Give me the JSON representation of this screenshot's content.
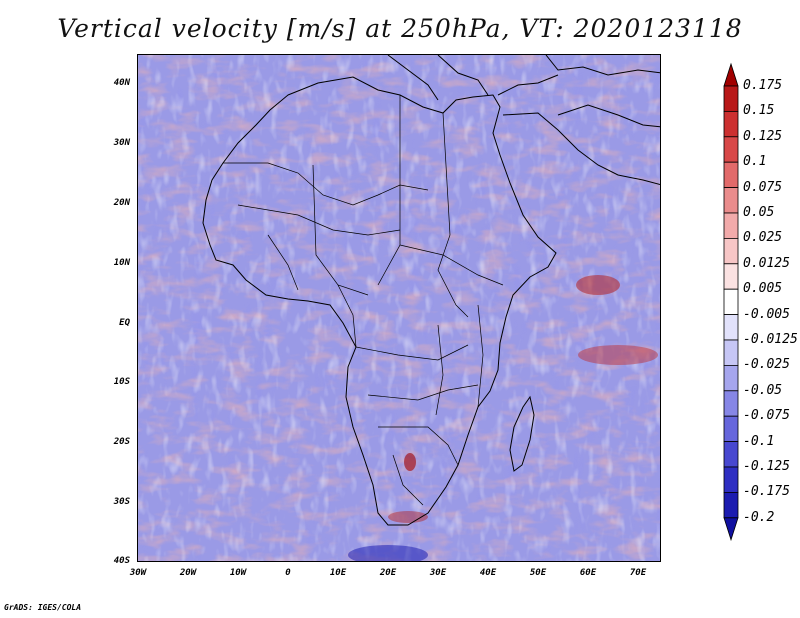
{
  "title": "Vertical velocity [m/s] at 250hPa, VT: 2020123118",
  "credit": "GrADS: IGES/COLA",
  "map": {
    "lat_labels": [
      "40N",
      "30N",
      "20N",
      "10N",
      "EQ",
      "10S",
      "20S",
      "30S",
      "40S"
    ],
    "lon_labels": [
      "30W",
      "20W",
      "10W",
      "0",
      "10E",
      "20E",
      "30E",
      "40E",
      "50E",
      "60E",
      "70E"
    ],
    "lat_range": [
      -40,
      44
    ],
    "lon_range": [
      -30,
      76
    ]
  },
  "colorbar": {
    "labels": [
      "0.175",
      "0.15",
      "0.125",
      "0.1",
      "0.075",
      "0.05",
      "0.025",
      "0.0125",
      "0.005",
      "-0.005",
      "-0.0125",
      "-0.025",
      "-0.05",
      "-0.075",
      "-0.1",
      "-0.125",
      "-0.175",
      "-0.2"
    ],
    "colors": [
      "#a00000",
      "#b81818",
      "#cc3030",
      "#d84848",
      "#e26a6a",
      "#ea8c8c",
      "#f2aaaa",
      "#f7c6c6",
      "#fbe2e2",
      "#ffffff",
      "#e2e2fb",
      "#c6c6f5",
      "#a6a6ee",
      "#8686e6",
      "#6666dc",
      "#4848d0",
      "#2e2ec2",
      "#1c1cb0",
      "#1010a0"
    ]
  }
}
